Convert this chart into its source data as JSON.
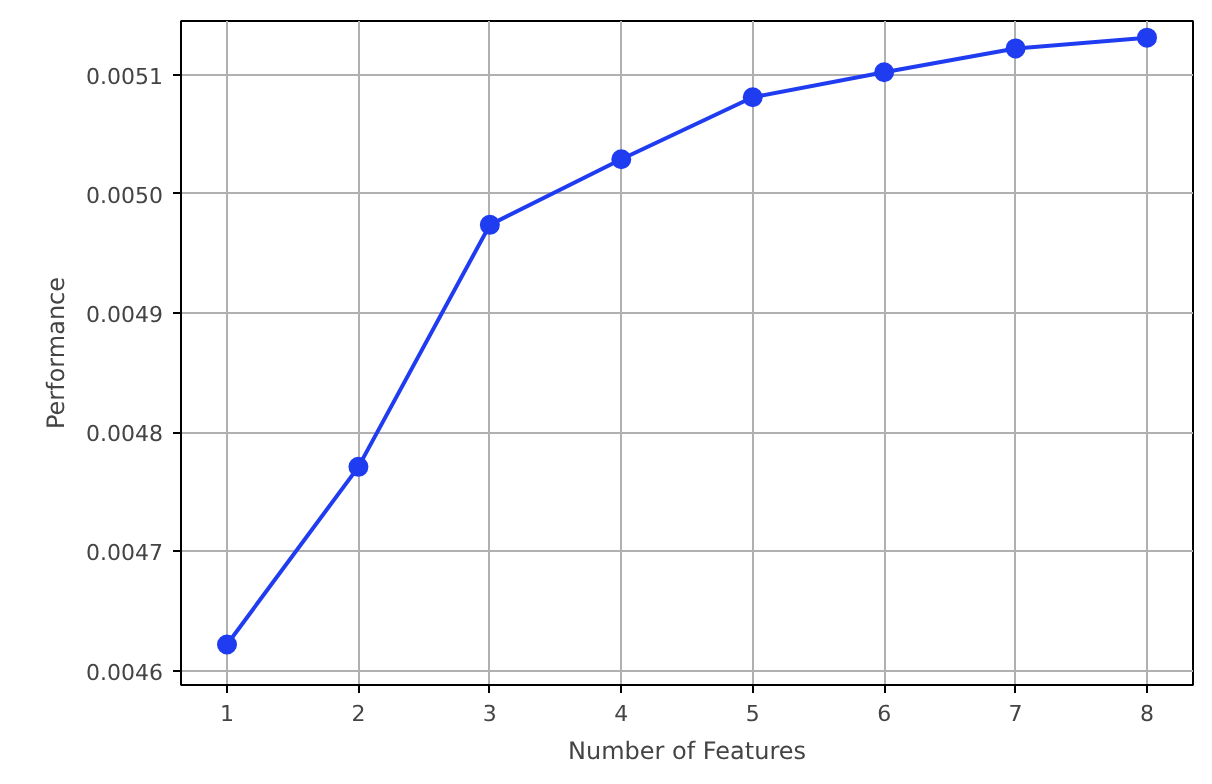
{
  "chart_data": {
    "type": "line",
    "xlabel": "Number of Features",
    "ylabel": "Performance",
    "x": [
      1,
      2,
      3,
      4,
      5,
      6,
      7,
      8
    ],
    "series": [
      {
        "color": "#1f3cf0",
        "values": [
          0.004622,
          0.004771,
          0.004974,
          0.005029,
          0.005081,
          0.005102,
          0.005122,
          0.005131
        ]
      }
    ],
    "xlim": [
      0.65,
      8.35
    ],
    "ylim": [
      0.004588,
      0.005145
    ],
    "xticks": [
      1,
      2,
      3,
      4,
      5,
      6,
      7,
      8
    ],
    "yticks": [
      {
        "value": 0.0046,
        "label": "0.0046"
      },
      {
        "value": 0.0047,
        "label": "0.0047"
      },
      {
        "value": 0.0048,
        "label": "0.0048"
      },
      {
        "value": 0.0049,
        "label": "0.0049"
      },
      {
        "value": 0.005,
        "label": "0.0050"
      },
      {
        "value": 0.0051,
        "label": "0.0051"
      }
    ],
    "grid": true,
    "marker": "circle",
    "line_style": "solid"
  }
}
